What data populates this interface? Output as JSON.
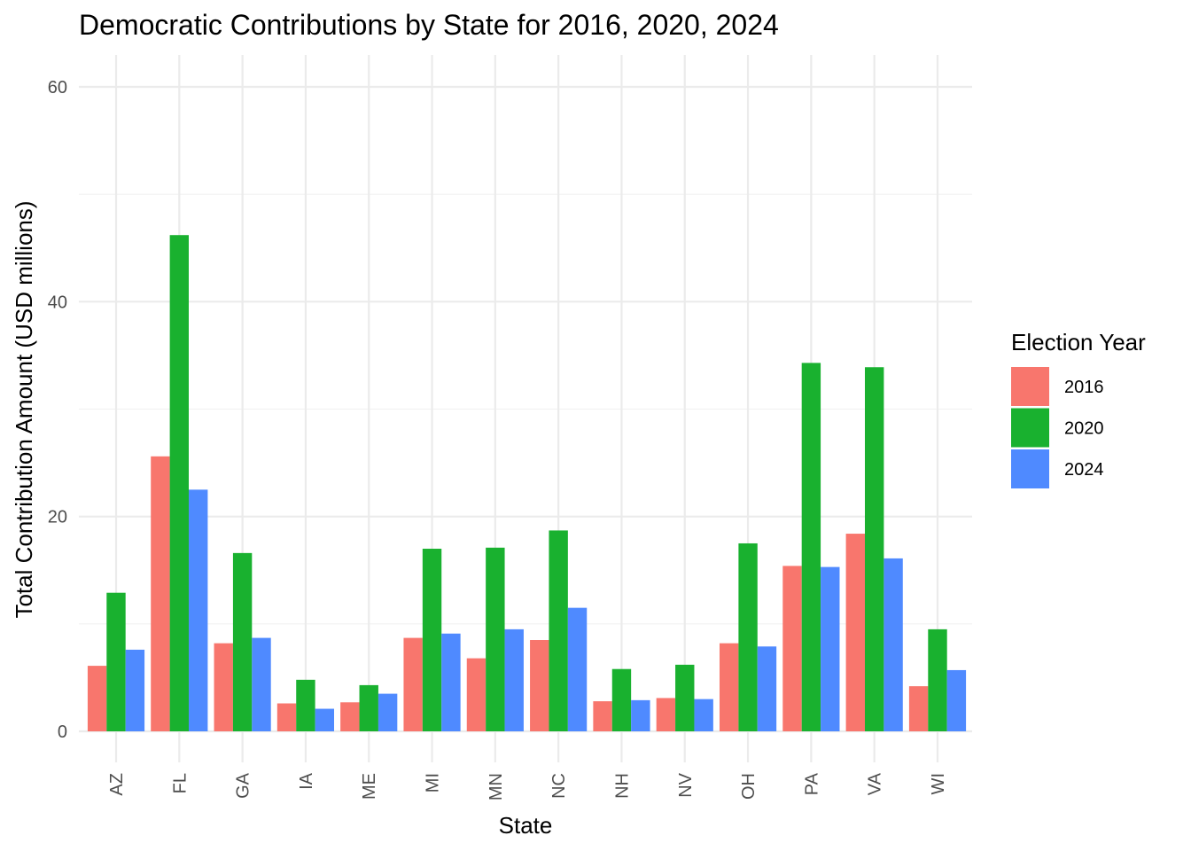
{
  "chart_data": {
    "type": "bar",
    "title": "Democratic Contributions by State for 2016, 2020, 2024",
    "xlabel": "State",
    "ylabel": "Total Contribution Amount (USD millions)",
    "categories": [
      "AZ",
      "FL",
      "GA",
      "IA",
      "ME",
      "MI",
      "MN",
      "NC",
      "NH",
      "NV",
      "OH",
      "PA",
      "VA",
      "WI"
    ],
    "ylim": [
      0,
      60
    ],
    "yticks": [
      0,
      20,
      40,
      60
    ],
    "grid": true,
    "legend": {
      "title": "Election Year",
      "position": "right"
    },
    "series": [
      {
        "name": "2016",
        "color": "#F8766D",
        "values": [
          6.1,
          25.6,
          8.2,
          2.6,
          2.7,
          8.7,
          6.8,
          8.5,
          2.8,
          3.1,
          8.2,
          15.4,
          18.4,
          4.2
        ]
      },
      {
        "name": "2020",
        "color": "#19B12F",
        "values": [
          12.9,
          46.2,
          16.6,
          4.8,
          4.3,
          17.0,
          17.1,
          18.7,
          5.8,
          6.2,
          17.5,
          34.3,
          33.9,
          9.5
        ]
      },
      {
        "name": "2024",
        "color": "#4F8AFF",
        "values": [
          7.6,
          22.5,
          8.7,
          2.1,
          3.5,
          9.1,
          9.5,
          11.5,
          2.9,
          3.0,
          7.9,
          15.3,
          16.1,
          5.7
        ]
      }
    ]
  }
}
